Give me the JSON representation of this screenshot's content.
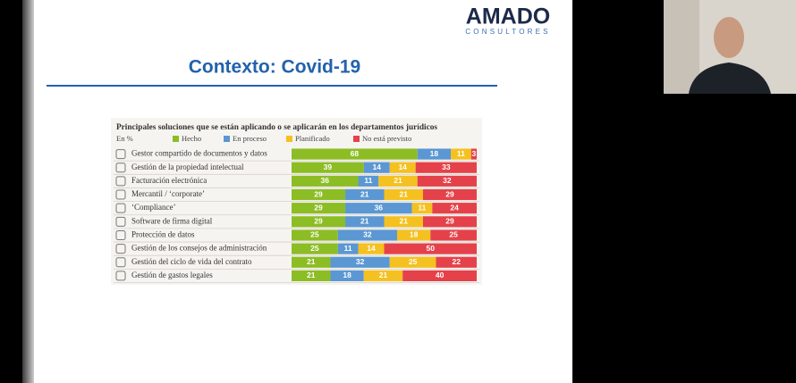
{
  "slide": {
    "logo": "AMADO",
    "logo_sub": "CONSULTORES",
    "title": "Contexto: Covid-19"
  },
  "chart_data": {
    "type": "stacked_bar",
    "title": "Principales soluciones que se están aplicando o se aplicarán en los departamentos jurídicos",
    "unit_label": "En %",
    "categories": [
      "Gestor compartido de documentos y datos",
      "Gestión de la propiedad intelectual",
      "Facturación electrónica",
      "Mercantil / ‘corporate’",
      "‘Compliance’",
      "Software de firma digital",
      "Protección de datos",
      "Gestión de los consejos de administración",
      "Gestión del ciclo de vida del contrato",
      "Gestión de gastos legales"
    ],
    "xlim": [
      0,
      100
    ],
    "legend": "top",
    "series": [
      {
        "name": "Hecho",
        "color": "#8cbd24",
        "values": [
          68,
          39,
          36,
          29,
          29,
          29,
          25,
          25,
          21,
          21
        ]
      },
      {
        "name": "En proceso",
        "color": "#5b97d3",
        "values": [
          18,
          14,
          11,
          21,
          36,
          21,
          32,
          11,
          32,
          18
        ]
      },
      {
        "name": "Planificado",
        "color": "#f4c120",
        "values": [
          11,
          14,
          21,
          21,
          11,
          21,
          18,
          14,
          25,
          21
        ]
      },
      {
        "name": "No está previsto",
        "color": "#e5414a",
        "values": [
          3,
          33,
          32,
          29,
          24,
          29,
          25,
          50,
          22,
          40
        ]
      }
    ]
  }
}
